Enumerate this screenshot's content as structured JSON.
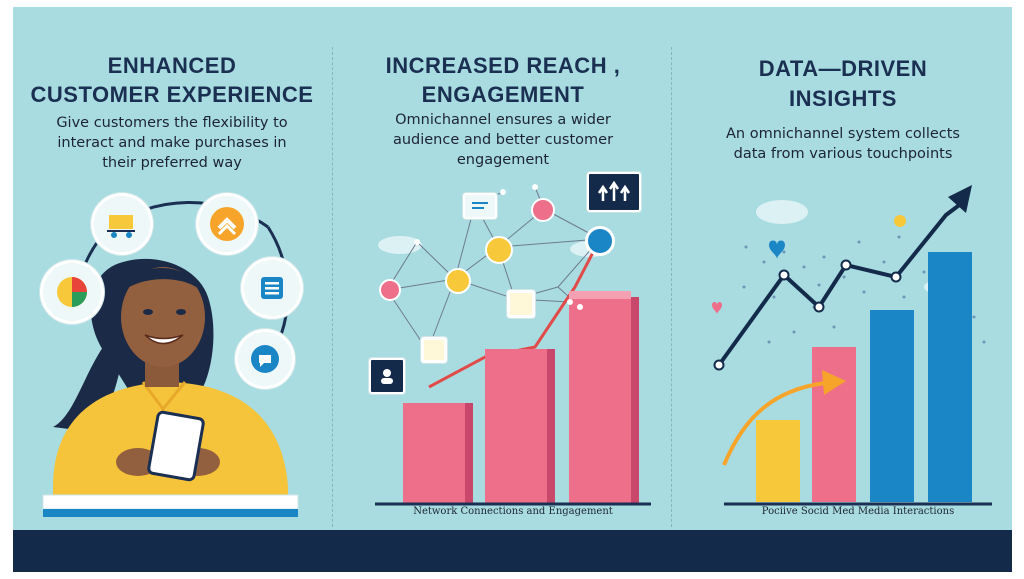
{
  "panels": [
    {
      "title_line1": "ENHANCED",
      "title_line2": "CUSTOMER EXPERIENCE",
      "desc_line1": "Give customers the flexibility to",
      "desc_line2": "interact and make purchases in",
      "desc_line3": "their preferred way"
    },
    {
      "title_line1": "INCREASED REACH ,",
      "title_line2": "ENGAGEMENT",
      "desc_line1": "Omnichannel ensures a wider",
      "desc_line2": "audience and better customer",
      "desc_line3": "engagement",
      "caption": "Network Connections and Engagement"
    },
    {
      "title_line1": "DATA—DRIVEN",
      "title_line2": "INSIGHTS",
      "desc_line1": "An omnichannel system collects",
      "desc_line2": "data from various touchpoints",
      "caption": "Pociive Socid Med Media Interactions"
    }
  ],
  "icons": [
    "shopping-cart-icon",
    "chevron-up-icon",
    "pie-chart-icon",
    "list-icon",
    "chat-icon",
    "user-icon",
    "lightbulb-icon",
    "fingerprint-icon",
    "arrows-up-icon",
    "heart-icon"
  ],
  "colors": {
    "background": "#a8dce0",
    "navy": "#132a4b",
    "pink": "#ee6f8a",
    "blue": "#1b86c6",
    "yellow": "#f7c93a"
  }
}
